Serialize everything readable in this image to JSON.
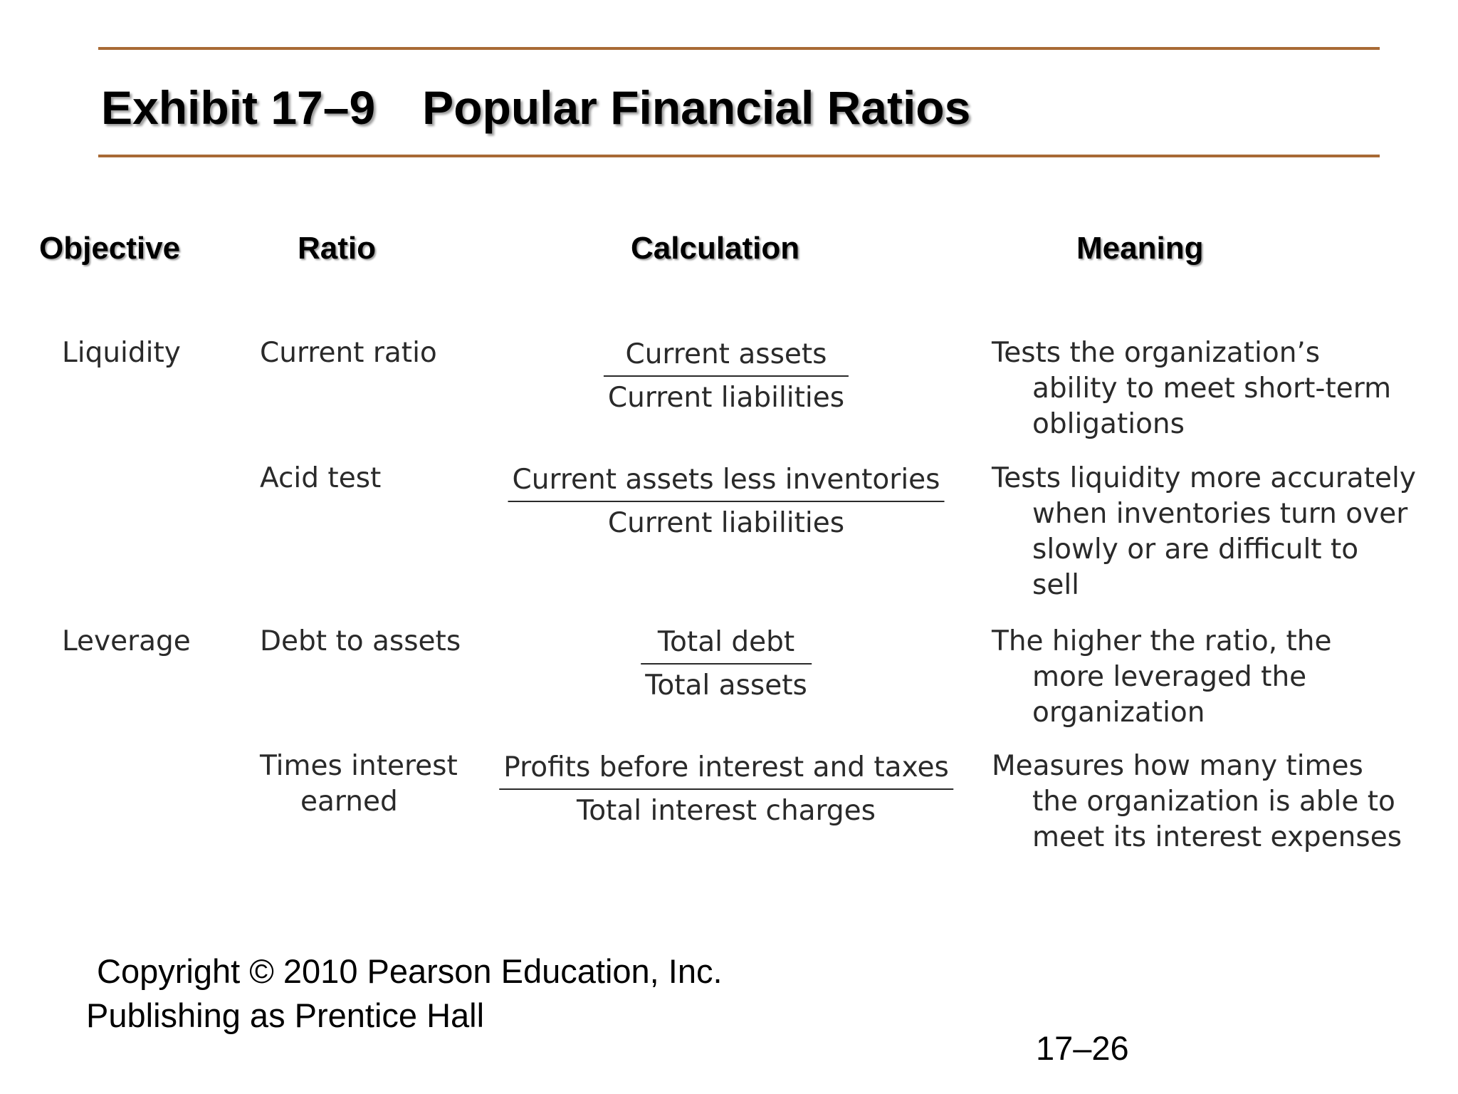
{
  "title": {
    "exhibit": "Exhibit 17–9",
    "name": "Popular Financial Ratios"
  },
  "columns": {
    "objective": "Objective",
    "ratio": "Ratio",
    "calculation": "Calculation",
    "meaning": "Meaning"
  },
  "rows": [
    {
      "objective": "Liquidity",
      "ratio": [
        "Current ratio"
      ],
      "numerator": "Current assets",
      "denominator": "Current liabilities",
      "meaning": [
        "Tests the organization’s",
        "ability to meet short-term",
        "obligations"
      ]
    },
    {
      "objective": "",
      "ratio": [
        "Acid test"
      ],
      "numerator": "Current assets less inventories",
      "denominator": "Current liabilities",
      "meaning": [
        "Tests liquidity more accurately",
        "when inventories turn over",
        "slowly or are difficult to",
        "sell"
      ]
    },
    {
      "objective": "Leverage",
      "ratio": [
        "Debt to assets"
      ],
      "numerator": "Total debt",
      "denominator": "Total assets",
      "meaning": [
        "The higher the ratio, the",
        "more leveraged the",
        "organization"
      ]
    },
    {
      "objective": "",
      "ratio": [
        "Times interest",
        "earned"
      ],
      "numerator": "Profits before interest and taxes",
      "denominator": "Total interest charges",
      "meaning": [
        "Measures how many times",
        "the organization is able to",
        "meet its interest expenses"
      ]
    }
  ],
  "footer": {
    "copyright": "Copyright © 2010 Pearson Education, Inc.",
    "publisher": "Publishing as Prentice Hall",
    "slide_number": "17–26"
  }
}
